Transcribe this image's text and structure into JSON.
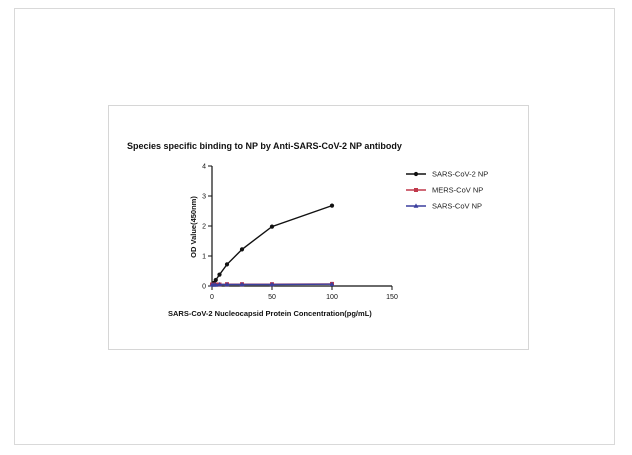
{
  "chart_data": {
    "type": "line",
    "title": "Species specific binding to NP by Anti-SARS-CoV-2 NP antibody",
    "xlabel": "SARS-CoV-2 Nucleocapsid Protein Concentration(pg/mL)",
    "ylabel": "OD Value(450nm)",
    "xlim": [
      0,
      150
    ],
    "ylim": [
      0,
      4
    ],
    "xticks": [
      0,
      50,
      100,
      150
    ],
    "yticks": [
      0,
      1,
      2,
      3,
      4
    ],
    "legend_position": "right",
    "grid": false,
    "series": [
      {
        "name": "SARS-CoV-2 NP",
        "color": "#111111",
        "marker": "circle",
        "x": [
          0,
          1.56,
          3.13,
          6.25,
          12.5,
          25,
          50,
          100
        ],
        "y": [
          0.05,
          0.1,
          0.2,
          0.38,
          0.72,
          1.22,
          1.98,
          2.68
        ]
      },
      {
        "name": "MERS-CoV NP",
        "color": "#c0394b",
        "marker": "square",
        "x": [
          0,
          1.56,
          3.13,
          6.25,
          12.5,
          25,
          50,
          100
        ],
        "y": [
          0.05,
          0.05,
          0.05,
          0.05,
          0.06,
          0.06,
          0.06,
          0.07
        ]
      },
      {
        "name": "SARS-CoV NP",
        "color": "#3b3f9e",
        "marker": "triangle",
        "x": [
          0,
          1.56,
          3.13,
          6.25,
          12.5,
          25,
          50,
          100
        ],
        "y": [
          0.04,
          0.04,
          0.04,
          0.05,
          0.05,
          0.05,
          0.05,
          0.06
        ]
      }
    ]
  }
}
